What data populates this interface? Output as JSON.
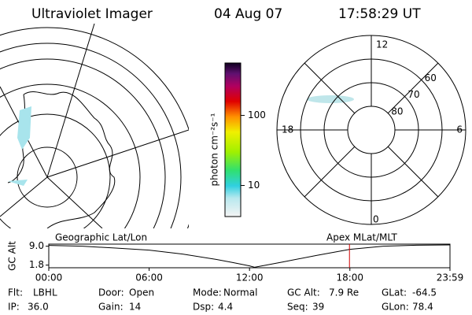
{
  "header": {
    "instrument": "Ultraviolet Imager",
    "date": "04 Aug 07",
    "time": "17:58:29 UT"
  },
  "colorbar": {
    "label": "photon cm⁻²s⁻¹",
    "range": [
      3.6,
      560
    ],
    "log": true,
    "ticks": [
      10,
      100
    ]
  },
  "polar": {
    "mlat_range": [
      90,
      50
    ],
    "mlat_labels": [
      80,
      70,
      60
    ],
    "mlt_labels": {
      "top": "12",
      "right": "6",
      "bottom": "0",
      "left": "18"
    }
  },
  "timeline": {
    "left_label": "Geographic Lat/Lon",
    "right_label": "Apex MLat/MLT",
    "y_label": "GC Alt",
    "ylim": [
      0.8,
      9.8
    ],
    "yticks": [
      {
        "value": 9,
        "label": "9.0"
      },
      1.8
    ],
    "xlim": [
      0,
      23.983
    ],
    "xticks": [
      {
        "value": 0,
        "label": "00:00"
      },
      {
        "value": 6,
        "label": "06:00"
      },
      {
        "value": 12,
        "label": "12:00"
      },
      {
        "value": 18,
        "label": "18:00"
      },
      {
        "value": 23.983,
        "label": "23:59"
      }
    ],
    "x": [
      0,
      2,
      4,
      6,
      8,
      10,
      11,
      12,
      12.3,
      13,
      14,
      16,
      18,
      20,
      22,
      23.983
    ],
    "values": [
      9.3,
      9.0,
      8.3,
      7.5,
      6.0,
      4.0,
      2.8,
      1.5,
      1.0,
      1.8,
      3.0,
      5.5,
      7.8,
      9.0,
      9.4,
      9.5
    ],
    "marker_hour": 17.975,
    "marker_color": "#d00000"
  },
  "status": [
    [
      {
        "label": "Flt:",
        "value": "LBHL"
      },
      {
        "label": "Door:",
        "value": "Open"
      },
      {
        "label": "Mode:",
        "value": "Normal"
      },
      {
        "label": "GC Alt:",
        "value": "7.9 Re"
      },
      {
        "label": "GLat:",
        "value": "-64.5"
      }
    ],
    [
      {
        "label": "IP:",
        "value": "36.0"
      },
      {
        "label": "Gain:",
        "value": "14"
      },
      {
        "label": "Dsp:",
        "value": "4.4"
      },
      {
        "label": "Seq:",
        "value": "39"
      },
      {
        "label": "GLon:",
        "value": "78.4"
      }
    ]
  ]
}
